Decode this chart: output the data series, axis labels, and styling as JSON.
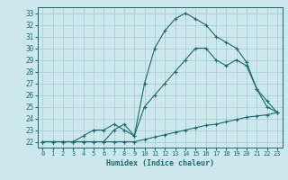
{
  "background_color": "#cce8ed",
  "grid_color": "#aacdd4",
  "line_color": "#1a6b6b",
  "xlabel": "Humidex (Indice chaleur)",
  "xlim": [
    -0.5,
    23.5
  ],
  "ylim": [
    21.5,
    33.5
  ],
  "yticks": [
    22,
    23,
    24,
    25,
    26,
    27,
    28,
    29,
    30,
    31,
    32,
    33
  ],
  "xticks": [
    0,
    1,
    2,
    3,
    4,
    5,
    6,
    7,
    8,
    9,
    10,
    11,
    12,
    13,
    14,
    15,
    16,
    17,
    18,
    19,
    20,
    21,
    22,
    23
  ],
  "line1_x": [
    0,
    1,
    2,
    3,
    4,
    5,
    6,
    7,
    8,
    9,
    10,
    11,
    12,
    13,
    14,
    15,
    16,
    17,
    18,
    19,
    20,
    21,
    22,
    23
  ],
  "line1_y": [
    22,
    22,
    22,
    22,
    22,
    22,
    22,
    22,
    22,
    22,
    22.2,
    22.4,
    22.6,
    22.8,
    23,
    23.2,
    23.4,
    23.5,
    23.7,
    23.9,
    24.1,
    24.2,
    24.3,
    24.5
  ],
  "line2_x": [
    0,
    1,
    2,
    3,
    4,
    5,
    6,
    7,
    8,
    9,
    10,
    11,
    12,
    13,
    14,
    15,
    16,
    17,
    18,
    19,
    20,
    21,
    22,
    23
  ],
  "line2_y": [
    22,
    22,
    22,
    22,
    22.5,
    23,
    23,
    23.5,
    23,
    22.5,
    25,
    26,
    27,
    28,
    29,
    30,
    30,
    29,
    28.5,
    29,
    28.5,
    26.5,
    25.5,
    24.5
  ],
  "line3_x": [
    0,
    1,
    2,
    3,
    4,
    5,
    6,
    7,
    8,
    9,
    10,
    11,
    12,
    13,
    14,
    15,
    16,
    17,
    18,
    19,
    20,
    21,
    22,
    23
  ],
  "line3_y": [
    22,
    22,
    22,
    22,
    22,
    22,
    22,
    23,
    23.5,
    22.5,
    27,
    30,
    31.5,
    32.5,
    33,
    32.5,
    32,
    31,
    30.5,
    30,
    28.8,
    26.5,
    25,
    24.5
  ]
}
